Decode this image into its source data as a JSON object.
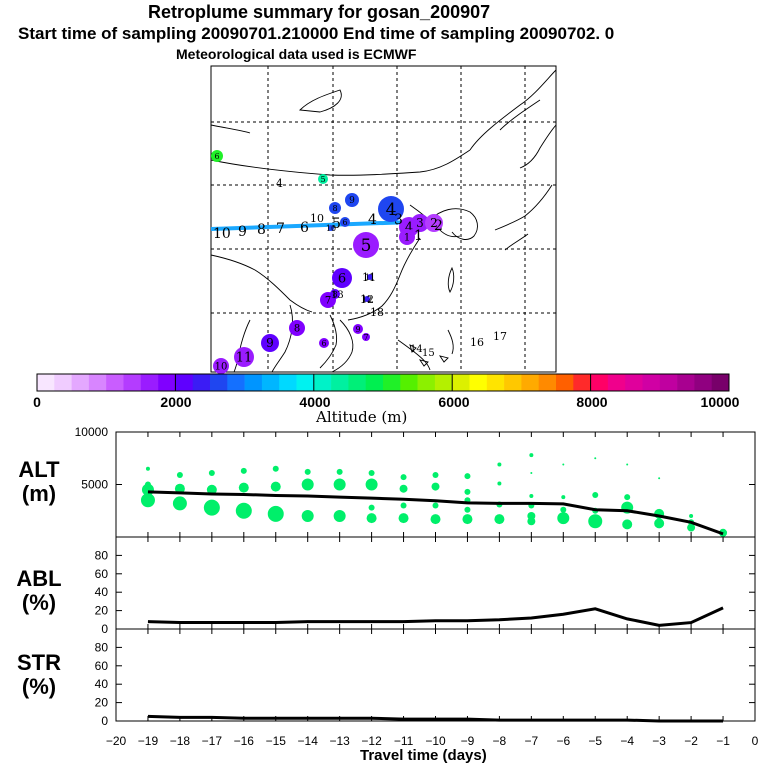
{
  "title": "Retroplume summary for gosan_200907",
  "subtitle": "Start time of sampling 20090701.210000     End time of sampling 20090702.     0",
  "met_line": "Meteorological data used is ECMWF",
  "colorbar": {
    "label": "Altitude (m)",
    "min": 0,
    "max": 10000,
    "tick_labels": [
      "0",
      "2000",
      "4000",
      "6000",
      "8000",
      "10000"
    ],
    "tick_values": [
      0,
      2000,
      4000,
      6000,
      8000,
      10000
    ],
    "colors": [
      "#f8e6ff",
      "#f0ccff",
      "#e4a8ff",
      "#d885ff",
      "#c95dff",
      "#b43cff",
      "#9a1cff",
      "#8000ff",
      "#5f00ff",
      "#3b1cf5",
      "#1f46f0",
      "#1470ff",
      "#0095ff",
      "#00b6ff",
      "#00d9ff",
      "#00f2f0",
      "#00f2c8",
      "#00f0a0",
      "#00ef78",
      "#00ef50",
      "#20f028",
      "#55f000",
      "#8cf000",
      "#b4f000",
      "#dcf000",
      "#ffff00",
      "#ffe400",
      "#ffc800",
      "#ffaa00",
      "#ff8a00",
      "#ff6000",
      "#ff2a2a",
      "#ff0066",
      "#f0008c",
      "#e0009c",
      "#d000a4",
      "#c000a0",
      "#a80090",
      "#900080",
      "#78006a"
    ]
  },
  "map": {
    "track_labels": [
      "10",
      "9",
      "8",
      "7",
      "6",
      "5",
      "4",
      "3",
      "2",
      "1"
    ],
    "text_labels": [
      "4",
      "10",
      "16",
      "17",
      "15",
      "14",
      "18",
      "12",
      "13",
      "11"
    ],
    "bubbles": [
      {
        "label": "6",
        "alt": 5200,
        "r": 6
      },
      {
        "label": "5",
        "alt": 4300,
        "r": 5
      },
      {
        "label": "9",
        "alt": 2600,
        "r": 7
      },
      {
        "label": "8",
        "alt": 2600,
        "r": 6
      },
      {
        "label": "6",
        "alt": 2700,
        "r": 5
      },
      {
        "label": "4",
        "alt": 2600,
        "r": 13
      },
      {
        "label": "5",
        "alt": 1500,
        "r": 13
      },
      {
        "label": "4",
        "alt": 1500,
        "r": 10
      },
      {
        "label": "3",
        "alt": 1600,
        "r": 9
      },
      {
        "label": "2",
        "alt": 1400,
        "r": 9
      },
      {
        "label": "1",
        "alt": 1700,
        "r": 8
      },
      {
        "label": "6",
        "alt": 2000,
        "r": 10
      },
      {
        "label": "7",
        "alt": 1800,
        "r": 8
      },
      {
        "label": "8",
        "alt": 2100,
        "r": 5
      },
      {
        "label": "8",
        "alt": 1800,
        "r": 8
      },
      {
        "label": "9",
        "alt": 2000,
        "r": 9
      },
      {
        "label": "11",
        "alt": 1700,
        "r": 10
      },
      {
        "label": "10",
        "alt": 1700,
        "r": 8
      },
      {
        "label": "6",
        "alt": 1800,
        "r": 5
      },
      {
        "label": "9",
        "alt": 1900,
        "r": 5
      },
      {
        "label": "7",
        "alt": 1800,
        "r": 4
      },
      {
        "label": "11",
        "alt": 2300,
        "r": 3
      },
      {
        "label": "12",
        "alt": 2400,
        "r": 3
      },
      {
        "label": "10",
        "alt": 2600,
        "r": 3
      }
    ]
  },
  "chart_data": [
    {
      "type": "scatter",
      "panel": "ALT",
      "ylabel": "ALT\n(m)",
      "ylabel_line1": "ALT",
      "ylabel_line2": "(m)",
      "ylim": [
        0,
        10000
      ],
      "yticks": [
        0,
        5000,
        10000
      ],
      "ytick_labels": [
        "",
        "5000",
        "10000"
      ],
      "xlim": [
        -20,
        0
      ],
      "mean_line": {
        "x": [
          -19,
          -18,
          -17,
          -16,
          -15,
          -14,
          -13,
          -12,
          -11,
          -10,
          -9,
          -8,
          -7,
          -6,
          -5,
          -4,
          -3,
          -2,
          -1
        ],
        "y": [
          4300,
          4200,
          4100,
          4050,
          3950,
          3900,
          3800,
          3700,
          3600,
          3450,
          3250,
          3200,
          3200,
          3150,
          2600,
          2500,
          2000,
          1400,
          300
        ]
      },
      "points": [
        {
          "x": -19,
          "y": 6500,
          "s": 2
        },
        {
          "x": -19,
          "y": 5000,
          "s": 3
        },
        {
          "x": -19,
          "y": 4500,
          "s": 6
        },
        {
          "x": -19,
          "y": 3500,
          "s": 7
        },
        {
          "x": -18,
          "y": 5900,
          "s": 3
        },
        {
          "x": -18,
          "y": 4600,
          "s": 5
        },
        {
          "x": -18,
          "y": 3200,
          "s": 7
        },
        {
          "x": -17,
          "y": 6100,
          "s": 3
        },
        {
          "x": -17,
          "y": 4500,
          "s": 5
        },
        {
          "x": -17,
          "y": 2800,
          "s": 8
        },
        {
          "x": -16,
          "y": 6300,
          "s": 3
        },
        {
          "x": -16,
          "y": 4700,
          "s": 5
        },
        {
          "x": -16,
          "y": 2500,
          "s": 8
        },
        {
          "x": -15,
          "y": 6500,
          "s": 3
        },
        {
          "x": -15,
          "y": 4800,
          "s": 5
        },
        {
          "x": -15,
          "y": 2200,
          "s": 8
        },
        {
          "x": -14,
          "y": 6200,
          "s": 3
        },
        {
          "x": -14,
          "y": 5000,
          "s": 6
        },
        {
          "x": -14,
          "y": 2000,
          "s": 6
        },
        {
          "x": -13,
          "y": 6200,
          "s": 3
        },
        {
          "x": -13,
          "y": 5000,
          "s": 6
        },
        {
          "x": -13,
          "y": 2000,
          "s": 6
        },
        {
          "x": -12,
          "y": 6100,
          "s": 3
        },
        {
          "x": -12,
          "y": 5000,
          "s": 6
        },
        {
          "x": -12,
          "y": 2800,
          "s": 3
        },
        {
          "x": -12,
          "y": 1800,
          "s": 5
        },
        {
          "x": -11,
          "y": 5700,
          "s": 3
        },
        {
          "x": -11,
          "y": 4600,
          "s": 4
        },
        {
          "x": -11,
          "y": 3000,
          "s": 3
        },
        {
          "x": -11,
          "y": 1800,
          "s": 5
        },
        {
          "x": -10,
          "y": 5900,
          "s": 3
        },
        {
          "x": -10,
          "y": 4800,
          "s": 4
        },
        {
          "x": -10,
          "y": 3000,
          "s": 3
        },
        {
          "x": -10,
          "y": 1700,
          "s": 5
        },
        {
          "x": -9,
          "y": 5800,
          "s": 3
        },
        {
          "x": -9,
          "y": 4300,
          "s": 3
        },
        {
          "x": -9,
          "y": 3500,
          "s": 3
        },
        {
          "x": -9,
          "y": 2600,
          "s": 3
        },
        {
          "x": -9,
          "y": 1700,
          "s": 5
        },
        {
          "x": -8,
          "y": 6900,
          "s": 2
        },
        {
          "x": -8,
          "y": 5100,
          "s": 2
        },
        {
          "x": -8,
          "y": 3100,
          "s": 3
        },
        {
          "x": -8,
          "y": 1700,
          "s": 5
        },
        {
          "x": -7,
          "y": 7800,
          "s": 2
        },
        {
          "x": -7,
          "y": 6100,
          "s": 1
        },
        {
          "x": -7,
          "y": 3900,
          "s": 2
        },
        {
          "x": -7,
          "y": 3000,
          "s": 3
        },
        {
          "x": -7,
          "y": 2000,
          "s": 4
        },
        {
          "x": -7,
          "y": 1500,
          "s": 4
        },
        {
          "x": -6,
          "y": 6900,
          "s": 1
        },
        {
          "x": -6,
          "y": 3800,
          "s": 2
        },
        {
          "x": -6,
          "y": 2600,
          "s": 3
        },
        {
          "x": -6,
          "y": 1800,
          "s": 6
        },
        {
          "x": -5,
          "y": 7500,
          "s": 1
        },
        {
          "x": -5,
          "y": 4000,
          "s": 3
        },
        {
          "x": -5,
          "y": 2500,
          "s": 3
        },
        {
          "x": -5,
          "y": 1500,
          "s": 7
        },
        {
          "x": -4,
          "y": 6900,
          "s": 1
        },
        {
          "x": -4,
          "y": 3800,
          "s": 3
        },
        {
          "x": -4,
          "y": 2800,
          "s": 6
        },
        {
          "x": -4,
          "y": 1200,
          "s": 5
        },
        {
          "x": -3,
          "y": 5600,
          "s": 1
        },
        {
          "x": -3,
          "y": 2200,
          "s": 5
        },
        {
          "x": -3,
          "y": 1300,
          "s": 5
        },
        {
          "x": -2,
          "y": 2000,
          "s": 2
        },
        {
          "x": -2,
          "y": 1400,
          "s": 3
        },
        {
          "x": -2,
          "y": 900,
          "s": 4
        },
        {
          "x": -1,
          "y": 400,
          "s": 4
        }
      ]
    },
    {
      "type": "line",
      "panel": "ABL",
      "ylabel_line1": "ABL",
      "ylabel_line2": "(%)",
      "ylim": [
        0,
        100
      ],
      "yticks": [
        0,
        20,
        40,
        60,
        80
      ],
      "ytick_labels": [
        "0",
        "20",
        "40",
        "60",
        "80"
      ],
      "x": [
        -19,
        -18,
        -17,
        -16,
        -15,
        -14,
        -13,
        -12,
        -11,
        -10,
        -9,
        -8,
        -7,
        -6,
        -5,
        -4,
        -3,
        -2,
        -1
      ],
      "y": [
        8,
        7,
        7,
        7,
        7,
        8,
        8,
        8,
        8,
        9,
        9,
        10,
        12,
        16,
        22,
        11,
        4,
        7,
        23
      ]
    },
    {
      "type": "line",
      "panel": "STR",
      "ylabel_line1": "STR",
      "ylabel_line2": "(%)",
      "ylim": [
        0,
        100
      ],
      "yticks": [
        0,
        20,
        40,
        60,
        80
      ],
      "ytick_labels": [
        "0",
        "20",
        "40",
        "60",
        "80"
      ],
      "x": [
        -19,
        -18,
        -17,
        -16,
        -15,
        -14,
        -13,
        -12,
        -11,
        -10,
        -9,
        -8,
        -7,
        -6,
        -5,
        -4,
        -3,
        -2,
        -1
      ],
      "y": [
        5,
        4,
        4,
        3,
        3,
        3,
        3,
        3,
        2,
        2,
        2,
        1,
        1,
        1,
        1,
        1,
        0,
        0,
        0
      ]
    }
  ],
  "x_axis": {
    "label": "Travel time (days)",
    "ticks": [
      -20,
      -19,
      -18,
      -17,
      -16,
      -15,
      -14,
      -13,
      -12,
      -11,
      -10,
      -9,
      -8,
      -7,
      -6,
      -5,
      -4,
      -3,
      -2,
      -1,
      0
    ],
    "tick_labels": [
      "−20",
      "−19",
      "−18",
      "−17",
      "−16",
      "−15",
      "−14",
      "−13",
      "−12",
      "−11",
      "−10",
      "−9",
      "−8",
      "−7",
      "−6",
      "−5",
      "−4",
      "−3",
      "−2",
      "−1",
      "0"
    ]
  },
  "styles": {
    "point_color": "#00ef6a",
    "line_color": "#000000",
    "track_color": "#1aa8ff"
  }
}
